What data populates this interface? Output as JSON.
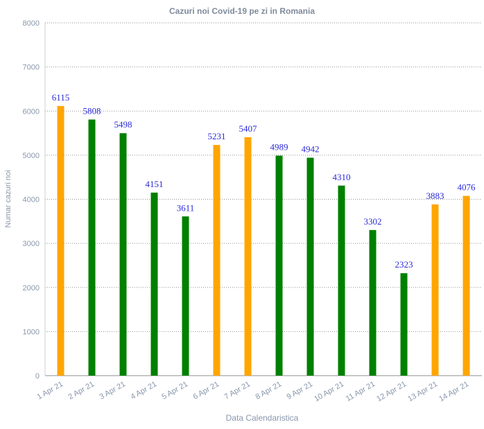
{
  "chart_data": {
    "type": "bar",
    "title": "Cazuri noi Covid-19 pe zi in Romania",
    "xlabel": "Data Calendaristica",
    "ylabel": "Numar cazuri noi",
    "ylim": [
      0,
      8000
    ],
    "yticks": [
      "0",
      "1000",
      "2000",
      "3000",
      "4000",
      "5000",
      "6000",
      "7000",
      "8000"
    ],
    "grid": true,
    "categories": [
      "1 Apr 21",
      "2 Apr 21",
      "3 Apr 21",
      "4 Apr 21",
      "5 Apr 21",
      "6 Apr 21",
      "7 Apr 21",
      "8 Apr 21",
      "9 Apr 21",
      "10 Apr 21",
      "11 Apr 21",
      "12 Apr 21",
      "13 Apr 21",
      "14 Apr 21"
    ],
    "values": [
      6115,
      5808,
      5498,
      4151,
      3611,
      5231,
      5407,
      4989,
      4942,
      4310,
      3302,
      2323,
      3883,
      4076
    ],
    "bar_colors": [
      "#ffa500",
      "#008000",
      "#008000",
      "#008000",
      "#008000",
      "#ffa500",
      "#ffa500",
      "#008000",
      "#008000",
      "#008000",
      "#008000",
      "#008000",
      "#ffa500",
      "#ffa500"
    ],
    "colors": {
      "title": "#7f8a9b",
      "axis_text": "#8a97ab",
      "data_label": "#2b2bd8",
      "grid": "#8e8e8e"
    }
  }
}
